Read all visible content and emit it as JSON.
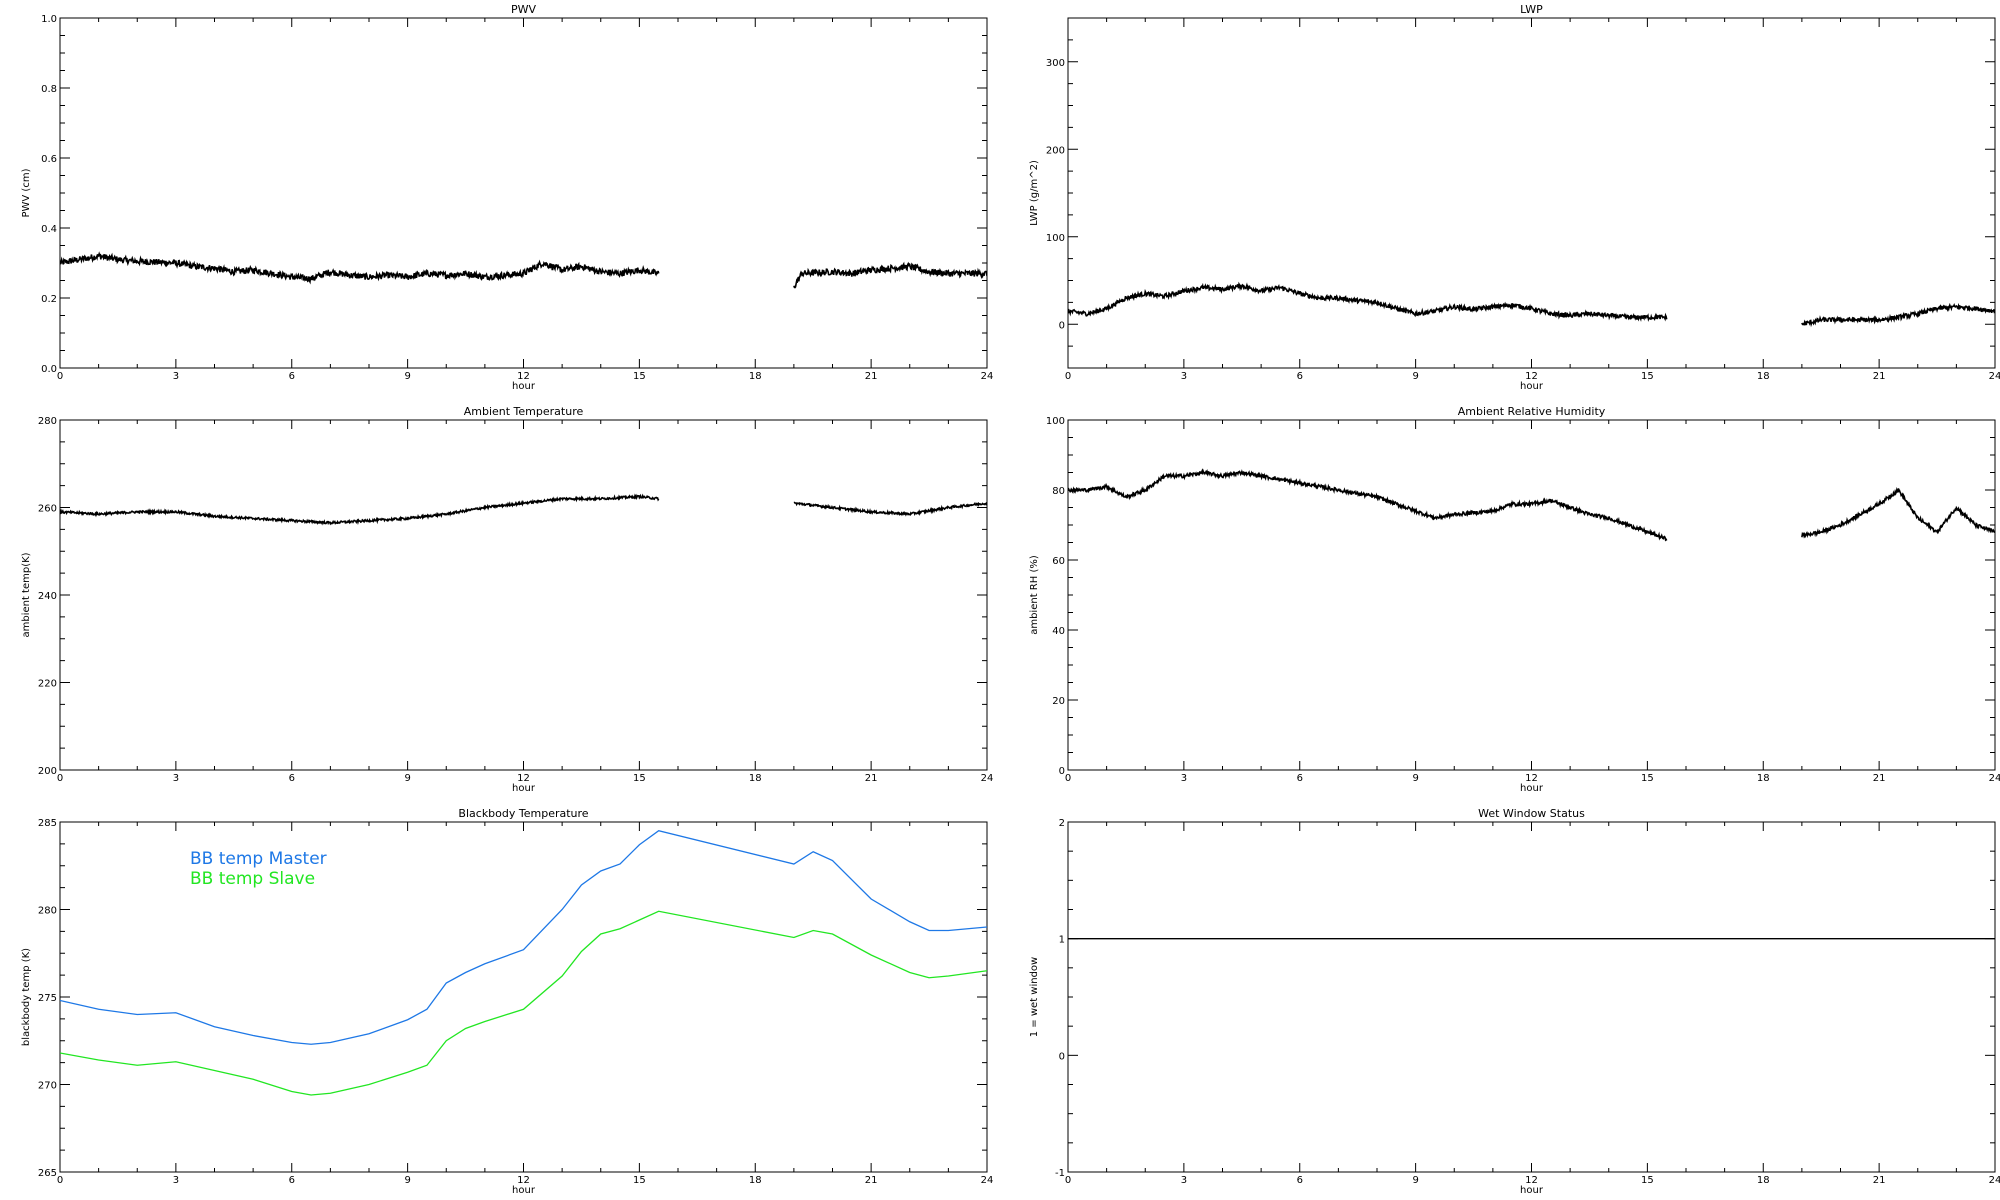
{
  "colors": {
    "master": "#1e78e6",
    "slave": "#22e622",
    "line": "#000000"
  },
  "chart_data": [
    {
      "id": "pwv",
      "type": "line",
      "title": "PWV",
      "xlabel": "hour",
      "ylabel": "PWV (cm)",
      "xlim": [
        0,
        24
      ],
      "ylim": [
        0.0,
        1.0
      ],
      "xticks": [
        "0",
        "3",
        "6",
        "9",
        "12",
        "15",
        "18",
        "21",
        "24"
      ],
      "yticks": [
        "0.0",
        "0.2",
        "0.4",
        "0.6",
        "0.8",
        "1.0"
      ],
      "noise": 0.009,
      "series": [
        {
          "color_key": "line",
          "segments": [
            [
              [
                0,
                0.3
              ],
              [
                0.5,
                0.31
              ],
              [
                1.0,
                0.32
              ],
              [
                1.5,
                0.31
              ],
              [
                2.0,
                0.305
              ],
              [
                3.0,
                0.3
              ],
              [
                3.5,
                0.29
              ],
              [
                4.0,
                0.285
              ],
              [
                4.5,
                0.275
              ],
              [
                5.0,
                0.28
              ],
              [
                5.5,
                0.27
              ],
              [
                6.0,
                0.26
              ],
              [
                6.5,
                0.255
              ],
              [
                7.0,
                0.275
              ],
              [
                7.5,
                0.265
              ],
              [
                8.0,
                0.26
              ],
              [
                8.5,
                0.265
              ],
              [
                9.0,
                0.26
              ],
              [
                9.5,
                0.27
              ],
              [
                10.0,
                0.265
              ],
              [
                10.5,
                0.27
              ],
              [
                11.0,
                0.26
              ],
              [
                11.5,
                0.265
              ],
              [
                12.0,
                0.27
              ],
              [
                12.5,
                0.3
              ],
              [
                13.0,
                0.28
              ],
              [
                13.5,
                0.29
              ],
              [
                14.0,
                0.275
              ],
              [
                14.5,
                0.27
              ],
              [
                15.0,
                0.28
              ],
              [
                15.5,
                0.27
              ]
            ],
            [
              [
                19.0,
                0.23
              ],
              [
                19.2,
                0.27
              ],
              [
                20.0,
                0.275
              ],
              [
                20.5,
                0.27
              ],
              [
                21.0,
                0.28
              ],
              [
                21.5,
                0.285
              ],
              [
                22.0,
                0.29
              ],
              [
                22.5,
                0.275
              ],
              [
                23.0,
                0.27
              ],
              [
                23.5,
                0.27
              ],
              [
                24.0,
                0.27
              ]
            ]
          ]
        }
      ]
    },
    {
      "id": "lwp",
      "type": "line",
      "title": "LWP",
      "xlabel": "hour",
      "ylabel": "LWP (g/m^2)",
      "xlim": [
        0,
        24
      ],
      "ylim": [
        -50,
        350
      ],
      "xticks": [
        "0",
        "3",
        "6",
        "9",
        "12",
        "15",
        "18",
        "21",
        "24"
      ],
      "yticks": [
        "0",
        "100",
        "200",
        "300"
      ],
      "noise": 2.5,
      "series": [
        {
          "color_key": "line",
          "segments": [
            [
              [
                0,
                15
              ],
              [
                0.5,
                12
              ],
              [
                1.0,
                18
              ],
              [
                1.5,
                30
              ],
              [
                2.0,
                35
              ],
              [
                2.5,
                32
              ],
              [
                3.0,
                38
              ],
              [
                3.5,
                42
              ],
              [
                4.0,
                40
              ],
              [
                4.5,
                44
              ],
              [
                5.0,
                38
              ],
              [
                5.5,
                42
              ],
              [
                6.0,
                35
              ],
              [
                6.5,
                30
              ],
              [
                7.0,
                30
              ],
              [
                7.5,
                27
              ],
              [
                8.0,
                25
              ],
              [
                8.5,
                18
              ],
              [
                9.0,
                12
              ],
              [
                9.5,
                15
              ],
              [
                10.0,
                20
              ],
              [
                10.5,
                17
              ],
              [
                11.0,
                20
              ],
              [
                11.5,
                22
              ],
              [
                12.0,
                18
              ],
              [
                12.5,
                12
              ],
              [
                13.0,
                10
              ],
              [
                13.5,
                12
              ],
              [
                14.0,
                10
              ],
              [
                14.5,
                8
              ],
              [
                15.0,
                8
              ],
              [
                15.5,
                8
              ]
            ],
            [
              [
                19.0,
                0
              ],
              [
                19.5,
                5
              ],
              [
                20.0,
                5
              ],
              [
                21.0,
                5
              ],
              [
                21.5,
                8
              ],
              [
                22.0,
                12
              ],
              [
                22.5,
                18
              ],
              [
                23.0,
                20
              ],
              [
                23.5,
                18
              ],
              [
                24.0,
                15
              ]
            ]
          ]
        }
      ]
    },
    {
      "id": "ambient-temp",
      "type": "line",
      "title": "Ambient Temperature",
      "xlabel": "hour",
      "ylabel": "ambient temp(K)",
      "xlim": [
        0,
        24
      ],
      "ylim": [
        200,
        280
      ],
      "xticks": [
        "0",
        "3",
        "6",
        "9",
        "12",
        "15",
        "18",
        "21",
        "24"
      ],
      "yticks": [
        "200",
        "220",
        "240",
        "260",
        "280"
      ],
      "noise": 0.25,
      "series": [
        {
          "color_key": "line",
          "segments": [
            [
              [
                0,
                259
              ],
              [
                1,
                258.5
              ],
              [
                2,
                259
              ],
              [
                3,
                259
              ],
              [
                4,
                258
              ],
              [
                5,
                257.5
              ],
              [
                6,
                257
              ],
              [
                7,
                256.5
              ],
              [
                8,
                257
              ],
              [
                9,
                257.5
              ],
              [
                10,
                258.5
              ],
              [
                11,
                260
              ],
              [
                12,
                261
              ],
              [
                13,
                262
              ],
              [
                14,
                262
              ],
              [
                15,
                262.5
              ],
              [
                15.5,
                262
              ]
            ],
            [
              [
                19.0,
                261
              ],
              [
                20.0,
                260
              ],
              [
                21.0,
                259
              ],
              [
                22.0,
                258.5
              ],
              [
                23.0,
                260
              ],
              [
                24.0,
                261
              ]
            ]
          ]
        }
      ]
    },
    {
      "id": "ambient-rh",
      "type": "line",
      "title": "Ambient Relative Humidity",
      "xlabel": "hour",
      "ylabel": "ambient RH (%)",
      "xlim": [
        0,
        24
      ],
      "ylim": [
        0,
        100
      ],
      "xticks": [
        "0",
        "3",
        "6",
        "9",
        "12",
        "15",
        "18",
        "21",
        "24"
      ],
      "yticks": [
        "0",
        "20",
        "40",
        "60",
        "80",
        "100"
      ],
      "noise": 0.5,
      "series": [
        {
          "color_key": "line",
          "segments": [
            [
              [
                0,
                80
              ],
              [
                0.5,
                80
              ],
              [
                1.0,
                81
              ],
              [
                1.5,
                78
              ],
              [
                2.0,
                80
              ],
              [
                2.5,
                84
              ],
              [
                3.0,
                84
              ],
              [
                3.5,
                85
              ],
              [
                4.0,
                84
              ],
              [
                4.5,
                85
              ],
              [
                5.0,
                84
              ],
              [
                6.0,
                82
              ],
              [
                7.0,
                80
              ],
              [
                8.0,
                78
              ],
              [
                9.0,
                74
              ],
              [
                9.5,
                72
              ],
              [
                10.0,
                73
              ],
              [
                11.0,
                74
              ],
              [
                11.5,
                76
              ],
              [
                12.0,
                76
              ],
              [
                12.5,
                77
              ],
              [
                13.0,
                75
              ],
              [
                13.5,
                73
              ],
              [
                14.0,
                72
              ],
              [
                14.5,
                70
              ],
              [
                15.0,
                68
              ],
              [
                15.5,
                66
              ]
            ],
            [
              [
                19.0,
                67
              ],
              [
                19.5,
                68
              ],
              [
                20.0,
                70
              ],
              [
                20.5,
                73
              ],
              [
                21.0,
                76
              ],
              [
                21.5,
                80
              ],
              [
                22.0,
                72
              ],
              [
                22.5,
                68
              ],
              [
                23.0,
                75
              ],
              [
                23.5,
                70
              ],
              [
                24.0,
                68
              ]
            ]
          ]
        }
      ]
    },
    {
      "id": "blackbody-temp",
      "type": "line",
      "title": "Blackbody Temperature",
      "xlabel": "hour",
      "ylabel": "blackbody temp (K)",
      "xlim": [
        0,
        24
      ],
      "ylim": [
        265,
        285
      ],
      "xticks": [
        "0",
        "3",
        "6",
        "9",
        "12",
        "15",
        "18",
        "21",
        "24"
      ],
      "yticks": [
        "265",
        "270",
        "275",
        "280",
        "285"
      ],
      "noise": 0,
      "legend": "upper-left",
      "series": [
        {
          "name": "BB temp Master",
          "color_key": "master",
          "segments": [
            [
              [
                0,
                274.8
              ],
              [
                1,
                274.3
              ],
              [
                2,
                274.0
              ],
              [
                3,
                274.1
              ],
              [
                4,
                273.3
              ],
              [
                5,
                272.8
              ],
              [
                6,
                272.4
              ],
              [
                6.5,
                272.3
              ],
              [
                7,
                272.4
              ],
              [
                8,
                272.9
              ],
              [
                9,
                273.7
              ],
              [
                9.5,
                274.3
              ],
              [
                10,
                275.8
              ],
              [
                10.5,
                276.4
              ],
              [
                11,
                276.9
              ],
              [
                12,
                277.7
              ],
              [
                13,
                280.0
              ],
              [
                13.5,
                281.4
              ],
              [
                14,
                282.2
              ],
              [
                14.5,
                282.6
              ],
              [
                15,
                283.7
              ],
              [
                15.5,
                284.5
              ],
              [
                19,
                282.6
              ],
              [
                19.5,
                283.3
              ],
              [
                20,
                282.8
              ],
              [
                21,
                280.6
              ],
              [
                22,
                279.3
              ],
              [
                22.5,
                278.8
              ],
              [
                23,
                278.8
              ],
              [
                24,
                279.0
              ]
            ]
          ]
        },
        {
          "name": "BB temp Slave",
          "color_key": "slave",
          "segments": [
            [
              [
                0,
                271.8
              ],
              [
                1,
                271.4
              ],
              [
                2,
                271.1
              ],
              [
                3,
                271.3
              ],
              [
                4,
                270.8
              ],
              [
                5,
                270.3
              ],
              [
                6,
                269.6
              ],
              [
                6.5,
                269.4
              ],
              [
                7,
                269.5
              ],
              [
                8,
                270.0
              ],
              [
                9,
                270.7
              ],
              [
                9.5,
                271.1
              ],
              [
                10,
                272.5
              ],
              [
                10.5,
                273.2
              ],
              [
                11,
                273.6
              ],
              [
                12,
                274.3
              ],
              [
                13,
                276.2
              ],
              [
                13.5,
                277.6
              ],
              [
                14,
                278.6
              ],
              [
                14.5,
                278.9
              ],
              [
                15,
                279.4
              ],
              [
                15.5,
                279.9
              ],
              [
                19,
                278.4
              ],
              [
                19.5,
                278.8
              ],
              [
                20,
                278.6
              ],
              [
                21,
                277.4
              ],
              [
                22,
                276.4
              ],
              [
                22.5,
                276.1
              ],
              [
                23,
                276.2
              ],
              [
                24,
                276.5
              ]
            ]
          ]
        }
      ]
    },
    {
      "id": "wet-window",
      "type": "line",
      "title": "Wet Window Status",
      "xlabel": "hour",
      "ylabel": "1 = wet window",
      "xlim": [
        0,
        24
      ],
      "ylim": [
        -1,
        2
      ],
      "xticks": [
        "0",
        "3",
        "6",
        "9",
        "12",
        "15",
        "18",
        "21",
        "24"
      ],
      "yticks": [
        "-1",
        "0",
        "1",
        "2"
      ],
      "noise": 0,
      "series": [
        {
          "color_key": "line",
          "segments": [
            [
              [
                0,
                1
              ],
              [
                24,
                1
              ]
            ]
          ]
        }
      ]
    }
  ]
}
